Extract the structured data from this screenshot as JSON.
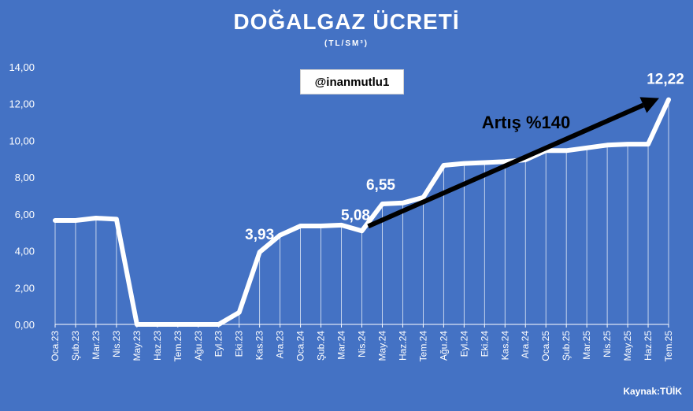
{
  "title": "DOĞALGAZ ÜCRETİ",
  "subtitle": "(TL/SM³)",
  "handle": "@inanmutlu1",
  "source": "Kaynak:TÜİK",
  "colors": {
    "background": "#4472c4",
    "line": "#ffffff",
    "arrow": "#000000",
    "text": "#ffffff"
  },
  "chart_data": {
    "type": "line",
    "categories": [
      "Oca.23",
      "Şub.23",
      "Mar.23",
      "Nis.23",
      "May.23",
      "Haz.23",
      "Tem.23",
      "Ağu.23",
      "Eyl.23",
      "Eki.23",
      "Kas.23",
      "Ara.23",
      "Oca.24",
      "Şub.24",
      "Mar.24",
      "Nis.24",
      "May.24",
      "Haz.24",
      "Tem.24",
      "Ağu.24",
      "Eyl.24",
      "Eki.24",
      "Kas.24",
      "Ara.24",
      "Oca.25",
      "Şub.25",
      "Mar.25",
      "Nis.25",
      "May.25",
      "Haz.25",
      "Tem.25"
    ],
    "values": [
      5.65,
      5.65,
      5.78,
      5.72,
      0,
      0,
      0,
      0,
      0,
      0.65,
      3.93,
      4.85,
      5.35,
      5.35,
      5.4,
      5.08,
      6.55,
      6.6,
      6.9,
      8.65,
      8.75,
      8.8,
      8.85,
      8.95,
      9.45,
      9.45,
      9.6,
      9.75,
      9.8,
      9.8,
      12.22
    ],
    "ylim": [
      0,
      14
    ],
    "yticks": [
      "0,00",
      "2,00",
      "4,00",
      "6,00",
      "8,00",
      "10,00",
      "12,00",
      "14,00"
    ],
    "grid": false,
    "data_labels": [
      {
        "index": 10,
        "text": "3,93"
      },
      {
        "index": 15,
        "text": "5,08"
      },
      {
        "index": 16,
        "text": "6,55"
      },
      {
        "index": 30,
        "text": "12,22"
      }
    ],
    "annotation": {
      "text": "Artış %140",
      "from_index": 15,
      "to_index": 30
    }
  }
}
